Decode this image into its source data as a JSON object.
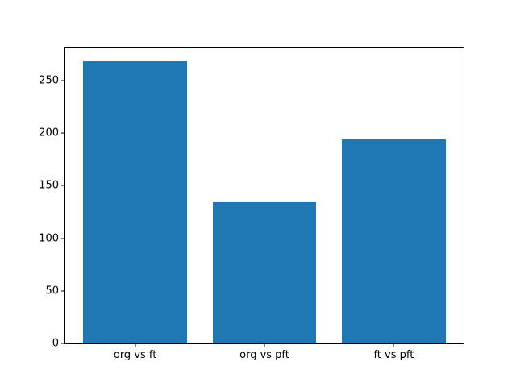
{
  "figure": {
    "background": "#ffffff"
  },
  "chart_data": {
    "type": "bar",
    "categories": [
      "org vs ft",
      "org vs pft",
      "ft vs pft"
    ],
    "values": [
      268,
      135,
      194
    ],
    "yticks": [
      0,
      50,
      100,
      150,
      200,
      250
    ],
    "ylim": [
      0,
      281.4
    ],
    "bar_color": "#1f77b4",
    "bar_width_fraction": 0.8,
    "x_margin_fraction": 0.05,
    "grid": false,
    "legend": null,
    "axis_color": "#000000",
    "tick_label_color": "#000000"
  }
}
